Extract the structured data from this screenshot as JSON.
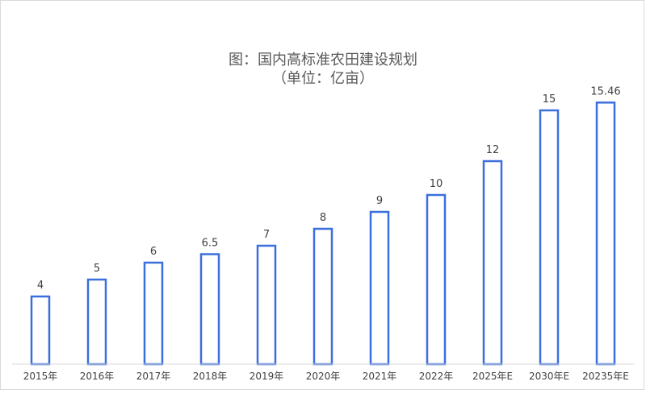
{
  "chart_data": {
    "type": "bar",
    "title": "图：国内高标准农田建设规划",
    "subtitle": "（单位：亿亩）",
    "categories": [
      "2015年",
      "2016年",
      "2017年",
      "2018年",
      "2019年",
      "2020年",
      "2021年",
      "2022年",
      "2025年E",
      "2030年E",
      "20235年E"
    ],
    "values": [
      4,
      5,
      6,
      6.5,
      7,
      8,
      9,
      10,
      12,
      15,
      15.46
    ],
    "value_labels": [
      "4",
      "5",
      "6",
      "6.5",
      "7",
      "8",
      "9",
      "10",
      "12",
      "15",
      "15.46"
    ],
    "xlabel": "",
    "ylabel": "",
    "ylim": [
      0,
      16
    ],
    "grid": false,
    "legend": "none",
    "bar_style": "outline",
    "colors": {
      "bar_stroke": "#3b6fdc",
      "bar_fill": "#ffffff",
      "text": "#404040",
      "title": "#595959",
      "axis": "#d9d9d9"
    }
  }
}
